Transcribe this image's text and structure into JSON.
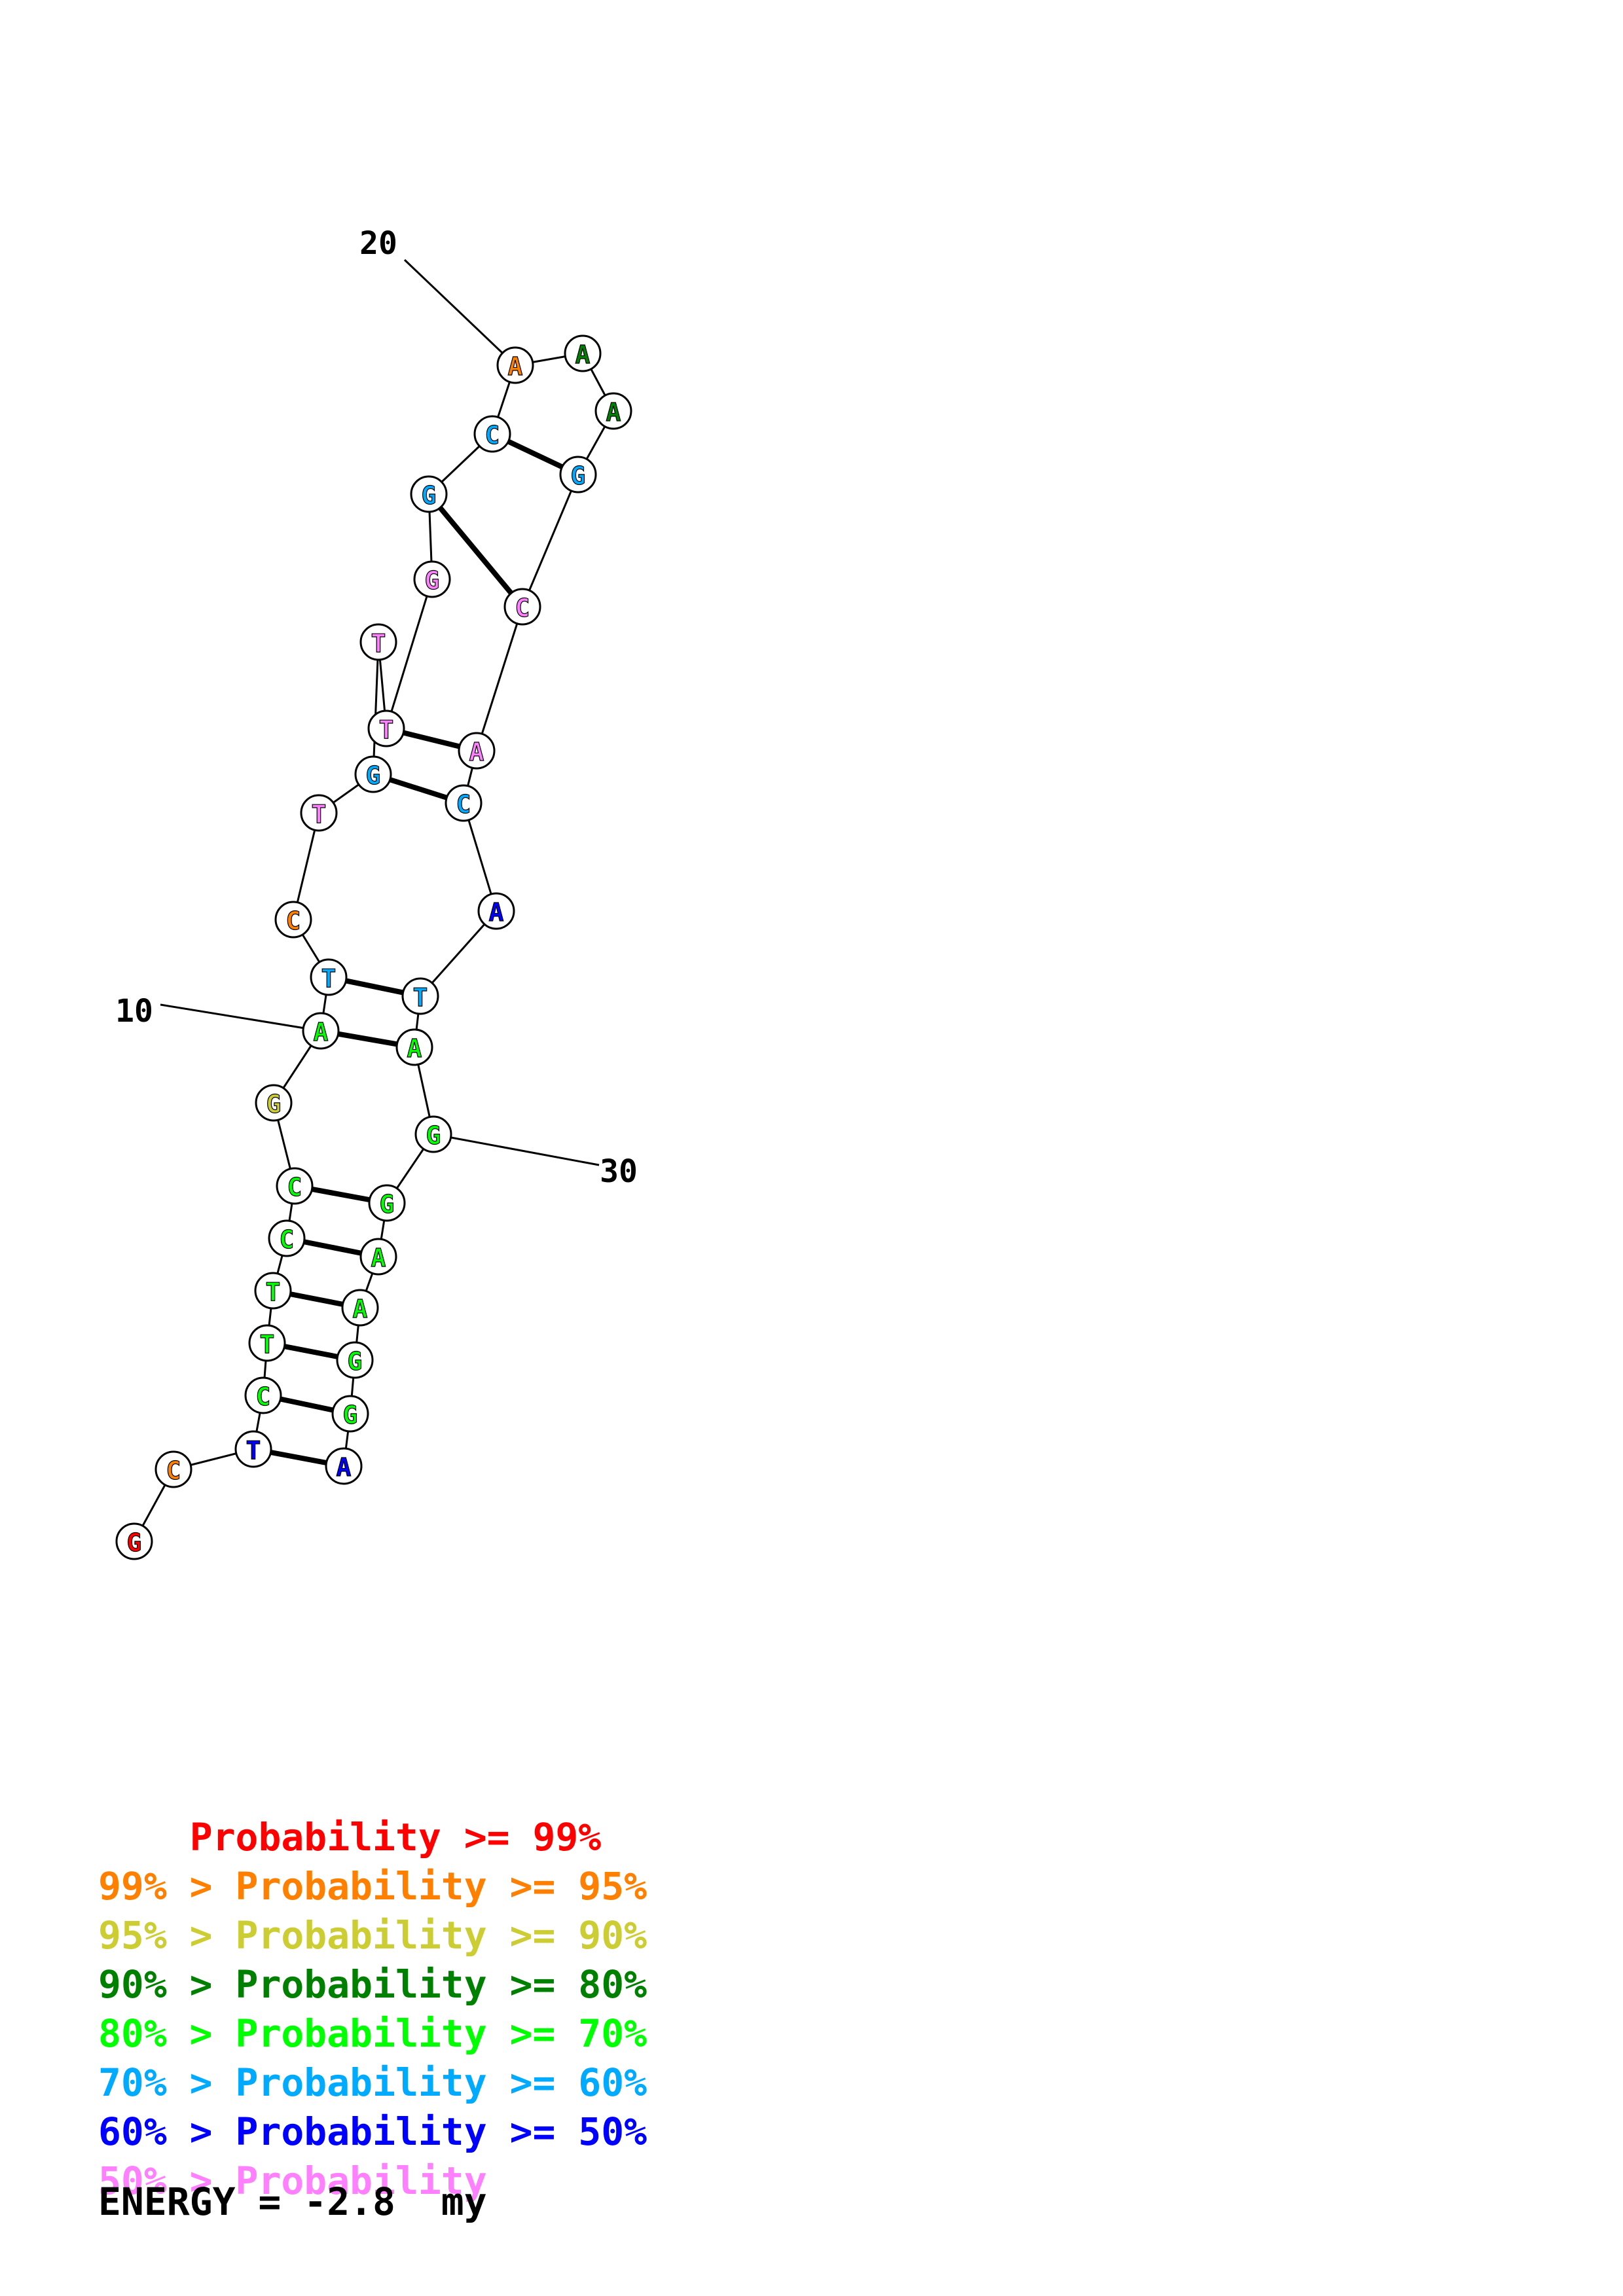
{
  "structure": {
    "sequence": [
      "G",
      "C",
      "T",
      "C",
      "T",
      "T",
      "C",
      "C",
      "G",
      "A",
      "T",
      "C",
      "T",
      "G",
      "T",
      "T",
      "G",
      "G",
      "C",
      "A",
      "A",
      "A",
      "G",
      "C",
      "A",
      "C",
      "A",
      "T",
      "A",
      "G",
      "G",
      "A",
      "A",
      "G",
      "G",
      "A"
    ],
    "colors": [
      "#ff0000",
      "#ff8000",
      "#0000ff",
      "#00ff00",
      "#00ff00",
      "#00ff00",
      "#00ff00",
      "#00ff00",
      "#cccc33",
      "#00ff00",
      "#00aaff",
      "#ff8000",
      "#ff80ff",
      "#00aaff",
      "#ff80ff",
      "#ff80ff",
      "#ff80ff",
      "#00aaff",
      "#00aaff",
      "#ff8000",
      "#008000",
      "#008000",
      "#00aaff",
      "#ff80ff",
      "#ff80ff",
      "#00aaff",
      "#0000ff",
      "#00aaff",
      "#00ff00",
      "#00ff00",
      "#00ff00",
      "#00ff00",
      "#00ff00",
      "#00ff00",
      "#00ff00",
      "#0000ff"
    ],
    "pairs": [
      [
        3,
        36
      ],
      [
        4,
        35
      ],
      [
        5,
        34
      ],
      [
        6,
        33
      ],
      [
        7,
        32
      ],
      [
        8,
        31
      ],
      [
        10,
        29
      ],
      [
        11,
        28
      ],
      [
        14,
        26
      ],
      [
        16,
        25
      ],
      [
        18,
        24
      ],
      [
        19,
        23
      ]
    ],
    "position_labels": [
      {
        "nt": 10,
        "text": "10"
      },
      {
        "nt": 20,
        "text": "20"
      },
      {
        "nt": 30,
        "text": "30"
      }
    ]
  },
  "legend": [
    {
      "prefix": "    ",
      "text": "Probability >= 99%",
      "color": "#ff0000"
    },
    {
      "prefix": "",
      "text": "99% > Probability >= 95%",
      "color": "#ff8000"
    },
    {
      "prefix": "",
      "text": "95% > Probability >= 90%",
      "color": "#cccc33"
    },
    {
      "prefix": "",
      "text": "90% > Probability >= 80%",
      "color": "#008000"
    },
    {
      "prefix": "",
      "text": "80% > Probability >= 70%",
      "color": "#00ff00"
    },
    {
      "prefix": "",
      "text": "70% > Probability >= 60%",
      "color": "#00aaff"
    },
    {
      "prefix": "",
      "text": "60% > Probability >= 50%",
      "color": "#0000ff"
    },
    {
      "prefix": "",
      "text": "50% > Probability",
      "color": "#ff80ff"
    }
  ],
  "energy": "ENERGY = -2.8  my"
}
